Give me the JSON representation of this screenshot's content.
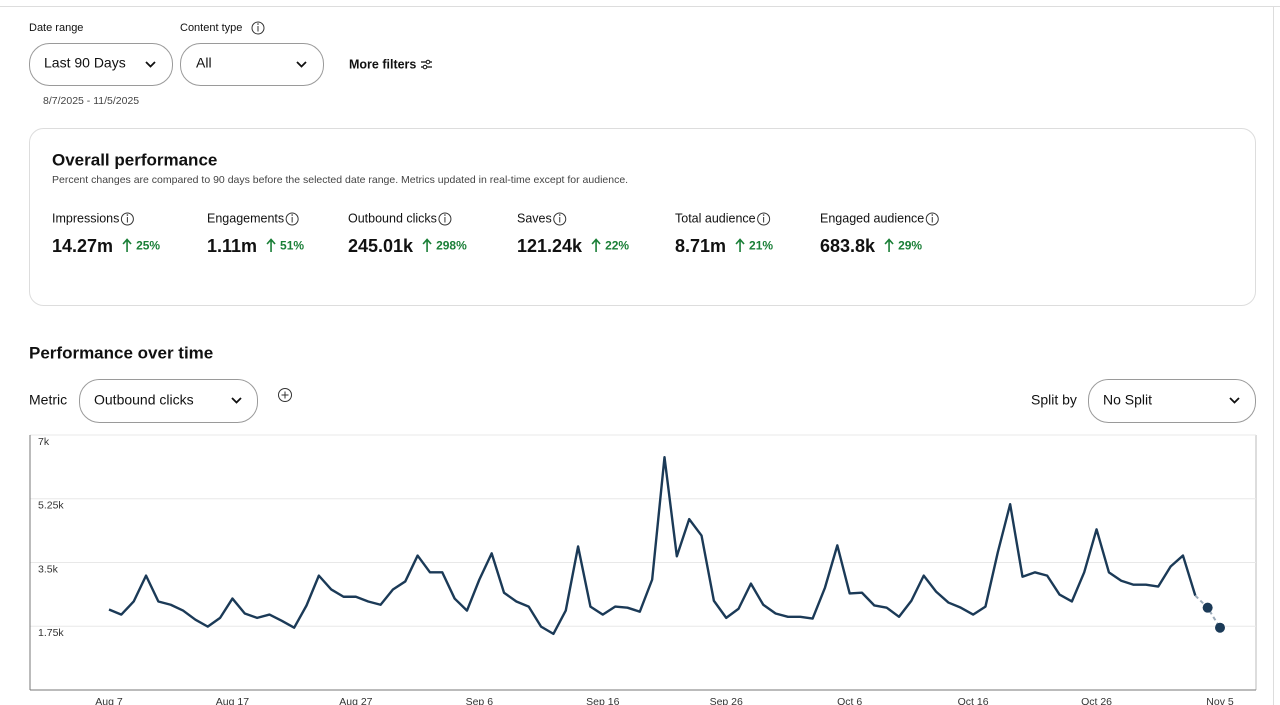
{
  "filters": {
    "date_range": {
      "label": "Date range",
      "value": "Last 90 Days",
      "dates": "8/7/2025 - 11/5/2025"
    },
    "content_type": {
      "label": "Content type",
      "value": "All"
    },
    "more_filters": "More filters"
  },
  "overall": {
    "title": "Overall performance",
    "subtitle": "Percent changes are compared to 90 days before the selected date range. Metrics updated in real-time except for audience.",
    "metrics": [
      {
        "label": "Impressions",
        "value": "14.27m",
        "change": "25%"
      },
      {
        "label": "Engagements",
        "value": "1.11m",
        "change": "51%"
      },
      {
        "label": "Outbound clicks",
        "value": "245.01k",
        "change": "298%"
      },
      {
        "label": "Saves",
        "value": "121.24k",
        "change": "22%"
      },
      {
        "label": "Total audience",
        "value": "8.71m",
        "change": "21%"
      },
      {
        "label": "Engaged audience",
        "value": "683.8k",
        "change": "29%"
      }
    ]
  },
  "performance": {
    "title": "Performance over time",
    "metric_label": "Metric",
    "metric": "Outbound clicks",
    "split_label": "Split by",
    "split": "No Split"
  },
  "chart_data": {
    "type": "line",
    "color": "#1b3a57",
    "grid": true,
    "projected_points": 2,
    "categories": [
      "Aug 7",
      null,
      null,
      null,
      null,
      null,
      null,
      null,
      null,
      null,
      "Aug 17",
      null,
      null,
      null,
      null,
      null,
      null,
      null,
      null,
      null,
      "Aug 27",
      null,
      null,
      null,
      null,
      null,
      null,
      null,
      null,
      null,
      "Sep 6",
      null,
      null,
      null,
      null,
      null,
      null,
      null,
      null,
      null,
      "Sep 16",
      null,
      null,
      null,
      null,
      null,
      null,
      null,
      null,
      null,
      "Sep 26",
      null,
      null,
      null,
      null,
      null,
      null,
      null,
      null,
      null,
      "Oct 6",
      null,
      null,
      null,
      null,
      null,
      null,
      null,
      null,
      null,
      "Oct 16",
      null,
      null,
      null,
      null,
      null,
      null,
      null,
      null,
      null,
      "Oct 26",
      null,
      null,
      null,
      null,
      null,
      null,
      null,
      null,
      null,
      "Nov 5"
    ],
    "values": [
      2210,
      2070,
      2430,
      3140,
      2430,
      2340,
      2180,
      1930,
      1740,
      1980,
      2510,
      2100,
      1980,
      2070,
      1900,
      1710,
      2320,
      3140,
      2760,
      2560,
      2560,
      2430,
      2340,
      2760,
      2980,
      3690,
      3230,
      3230,
      2510,
      2180,
      3030,
      3750,
      2670,
      2430,
      2290,
      1740,
      1540,
      2180,
      3940,
      2290,
      2070,
      2290,
      2260,
      2150,
      3030,
      6390,
      3670,
      4690,
      4240,
      2450,
      1980,
      2230,
      2920,
      2340,
      2100,
      2010,
      2010,
      1960,
      2810,
      3970,
      2650,
      2670,
      2320,
      2260,
      2010,
      2450,
      3140,
      2700,
      2400,
      2260,
      2070,
      2290,
      3780,
      5100,
      3110,
      3230,
      3140,
      2620,
      2430,
      3230,
      4410,
      3230,
      3000,
      2890,
      2890,
      2840,
      3390,
      3690,
      2590,
      2260,
      1710
    ],
    "ylim": [
      0,
      7000
    ],
    "yticks": [
      {
        "value": 1750,
        "label": "1.75k"
      },
      {
        "value": 3500,
        "label": "3.5k"
      },
      {
        "value": 5250,
        "label": "5.25k"
      },
      {
        "value": 7000,
        "label": "7k"
      }
    ]
  }
}
